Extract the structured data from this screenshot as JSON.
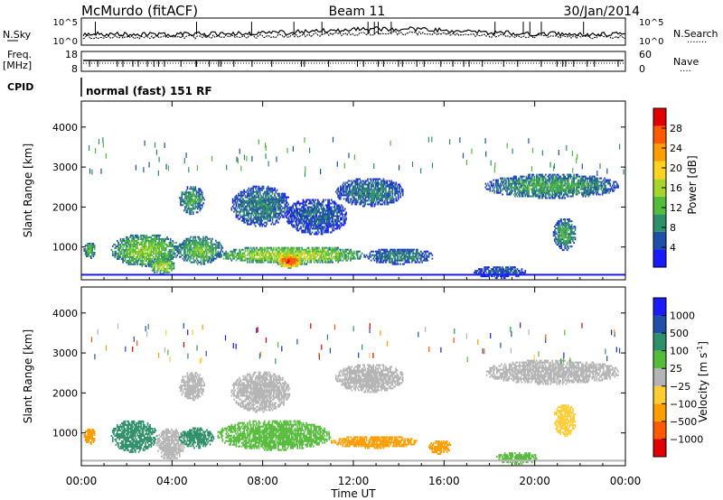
{
  "header": {
    "station": "McMurdo (fitACF)",
    "beam": "Beam 11",
    "date": "30/Jan/2014"
  },
  "top_panels": {
    "nsky_label": "N.Sky",
    "nsearch_label": "N.Search",
    "nsearch_dots": "·······",
    "noise_ticks_left": [
      "10^5",
      "10^0"
    ],
    "noise_ticks_right": [
      "10^5",
      "10^0"
    ],
    "freq_label": "Freq.",
    "freq_unit": "[MHz]",
    "freq_ticks": [
      "18",
      "8"
    ],
    "nave_label": "Nave",
    "nave_dots": "····",
    "nave_ticks": [
      "60",
      "0"
    ],
    "cpid_label": "CPID",
    "cpid_value": "normal (fast) 151 RF"
  },
  "colors": {
    "power": [
      "#1a1aff",
      "#1f4fa8",
      "#2f8f6a",
      "#55bb3a",
      "#a6d42a",
      "#ffd21f",
      "#ff9c00",
      "#ff5a00",
      "#e00000"
    ],
    "velocity": [
      "#e00000",
      "#ff5a00",
      "#ff9c00",
      "#ffcc33",
      "#b4b4b4",
      "#55bb3a",
      "#2f8f6a",
      "#1f4fa8",
      "#1a1aff"
    ]
  },
  "chart_data": [
    {
      "type": "heatmap",
      "name": "Power",
      "xlabel": "",
      "ylabel": "Slant Range [km]",
      "x_ticks": [
        "00:00",
        "04:00",
        "08:00",
        "12:00",
        "16:00",
        "20:00",
        "00:00"
      ],
      "y_ticks": [
        "1000",
        "2000",
        "3000",
        "4000"
      ],
      "xlim_hours": [
        0,
        24
      ],
      "ylim_km": [
        180,
        4650
      ],
      "colorbar_label": "Power [dB]",
      "colorbar_ticks": [
        "4",
        "8",
        "12",
        "16",
        "20",
        "24",
        "28"
      ],
      "colorbar_range": [
        0,
        32
      ],
      "echo_regions": [
        {
          "t0": 0.1,
          "t1": 0.6,
          "r0": 700,
          "r1": 1100,
          "value": 12
        },
        {
          "t0": 1.3,
          "t1": 4.3,
          "r0": 500,
          "r1": 1300,
          "value": 14
        },
        {
          "t0": 3.0,
          "t1": 4.1,
          "r0": 300,
          "r1": 700,
          "value": 16
        },
        {
          "t0": 4.2,
          "t1": 6.2,
          "r0": 550,
          "r1": 1250,
          "value": 12
        },
        {
          "t0": 6.0,
          "t1": 12.5,
          "r0": 550,
          "r1": 1000,
          "value": 16
        },
        {
          "t0": 8.6,
          "t1": 9.7,
          "r0": 450,
          "r1": 800,
          "value": 28
        },
        {
          "t0": 12.5,
          "t1": 15.5,
          "r0": 550,
          "r1": 950,
          "value": 8
        },
        {
          "t0": 4.3,
          "t1": 5.4,
          "r0": 1800,
          "r1": 2500,
          "value": 10
        },
        {
          "t0": 6.6,
          "t1": 9.2,
          "r0": 1500,
          "r1": 2500,
          "value": 8
        },
        {
          "t0": 9.0,
          "t1": 11.7,
          "r0": 1300,
          "r1": 2200,
          "value": 6
        },
        {
          "t0": 11.2,
          "t1": 14.2,
          "r0": 2000,
          "r1": 2700,
          "value": 8
        },
        {
          "t0": 17.8,
          "t1": 23.7,
          "r0": 2200,
          "r1": 2800,
          "value": 10
        },
        {
          "t0": 20.8,
          "t1": 21.8,
          "r0": 900,
          "r1": 1700,
          "value": 10
        },
        {
          "t0": 17.3,
          "t1": 19.6,
          "r0": 200,
          "r1": 500,
          "value": 6
        }
      ]
    },
    {
      "type": "heatmap",
      "name": "Velocity",
      "xlabel": "Time UT",
      "ylabel": "Slant Range [km]",
      "x_ticks": [
        "00:00",
        "04:00",
        "08:00",
        "12:00",
        "16:00",
        "20:00",
        "00:00"
      ],
      "y_ticks": [
        "1000",
        "2000",
        "3000",
        "4000"
      ],
      "xlim_hours": [
        0,
        24
      ],
      "ylim_km": [
        180,
        4650
      ],
      "colorbar_label": "Velocity [m s^-1]",
      "colorbar_ticks": [
        "1000",
        "500",
        "100",
        "25",
        "−25",
        "−100",
        "−500",
        "−1000"
      ],
      "echo_regions": [
        {
          "t0": 0.1,
          "t1": 0.6,
          "r0": 700,
          "r1": 1100,
          "value": -300
        },
        {
          "t0": 1.3,
          "t1": 3.3,
          "r0": 500,
          "r1": 1300,
          "value": 300
        },
        {
          "t0": 3.3,
          "t1": 4.5,
          "r0": 300,
          "r1": 1100,
          "value": 0
        },
        {
          "t0": 4.3,
          "t1": 5.8,
          "r0": 600,
          "r1": 1100,
          "value": 300
        },
        {
          "t0": 6.0,
          "t1": 11.0,
          "r0": 550,
          "r1": 1300,
          "value": 60
        },
        {
          "t0": 11.0,
          "t1": 14.8,
          "r0": 600,
          "r1": 900,
          "value": -150
        },
        {
          "t0": 15.3,
          "t1": 16.3,
          "r0": 450,
          "r1": 800,
          "value": -300
        },
        {
          "t0": 18.3,
          "t1": 20.1,
          "r0": 200,
          "r1": 500,
          "value": 60
        },
        {
          "t0": 4.3,
          "t1": 5.4,
          "r0": 1800,
          "r1": 2500,
          "value": 0
        },
        {
          "t0": 6.6,
          "t1": 9.2,
          "r0": 1500,
          "r1": 2500,
          "value": 0
        },
        {
          "t0": 11.2,
          "t1": 14.2,
          "r0": 2000,
          "r1": 2700,
          "value": 0
        },
        {
          "t0": 17.8,
          "t1": 23.7,
          "r0": 2200,
          "r1": 2800,
          "value": 0
        },
        {
          "t0": 20.8,
          "t1": 21.8,
          "r0": 900,
          "r1": 1700,
          "value": -60
        }
      ]
    }
  ]
}
